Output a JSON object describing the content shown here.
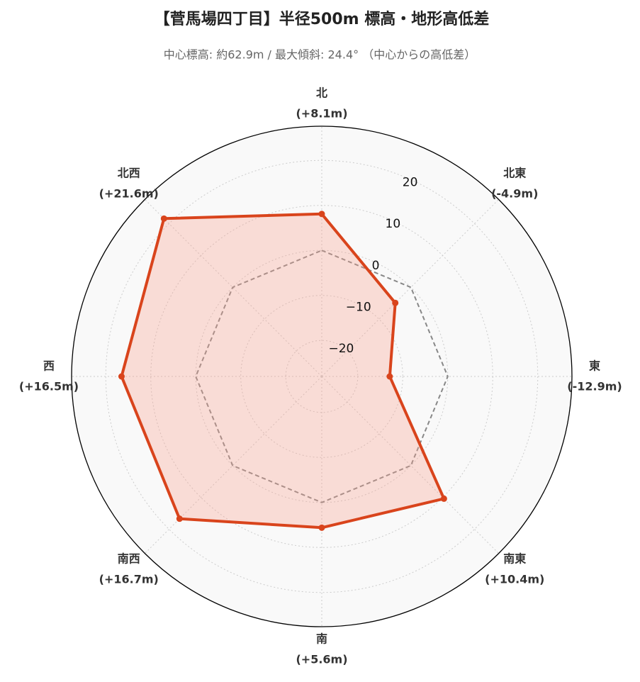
{
  "chart_data": {
    "type": "radar",
    "title": "【菅馬場四丁目】半径500m 標高・地形高低差",
    "subtitle": "中心標高: 約62.9m / 最大傾斜: 24.4° （中心からの高低差）",
    "categories": [
      "北",
      "北東",
      "東",
      "南東",
      "南",
      "南西",
      "西",
      "北西"
    ],
    "series": [
      {
        "color": "#d9441c",
        "fill": "rgba(250,160,140,0.32)",
        "values": [
          8.1,
          -4.9,
          -12.9,
          10.4,
          5.6,
          16.7,
          16.5,
          21.6
        ],
        "value_labels": [
          "(+8.1m)",
          "(-4.9m)",
          "(-12.9m)",
          "(+10.4m)",
          "(+5.6m)",
          "(+16.7m)",
          "(+16.5m)",
          "(+21.6m)"
        ]
      },
      {
        "color": "#888888",
        "dash": true,
        "values": [
          0,
          0,
          0,
          0,
          0,
          0,
          0,
          0
        ]
      }
    ],
    "ylim": [
      -28,
      27.6
    ],
    "yticks": [
      -20,
      -10,
      0,
      10,
      20
    ],
    "grid": true
  }
}
